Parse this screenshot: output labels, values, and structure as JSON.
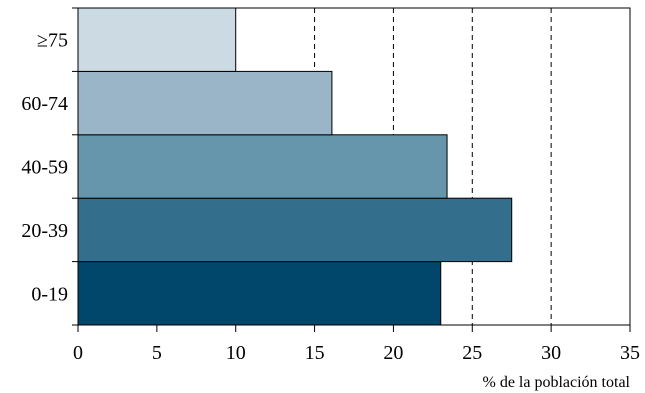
{
  "chart_data": {
    "type": "bar",
    "orientation": "horizontal",
    "categories": [
      "0-19",
      "20-39",
      "40-59",
      "60-74",
      "≥75"
    ],
    "values": [
      23.0,
      27.5,
      23.4,
      16.1,
      10.0
    ],
    "colors": [
      "#00476B",
      "#336F8D",
      "#6696AB",
      "#99B5C7",
      "#CCDAE3"
    ],
    "xlabel": "% de la población total",
    "ylabel": "",
    "xlim": [
      0,
      35
    ],
    "xticks": [
      0,
      5,
      10,
      15,
      20,
      25,
      30,
      35
    ],
    "grid": {
      "x": true,
      "style": "dashed",
      "at": [
        15,
        20,
        25,
        30
      ]
    }
  }
}
